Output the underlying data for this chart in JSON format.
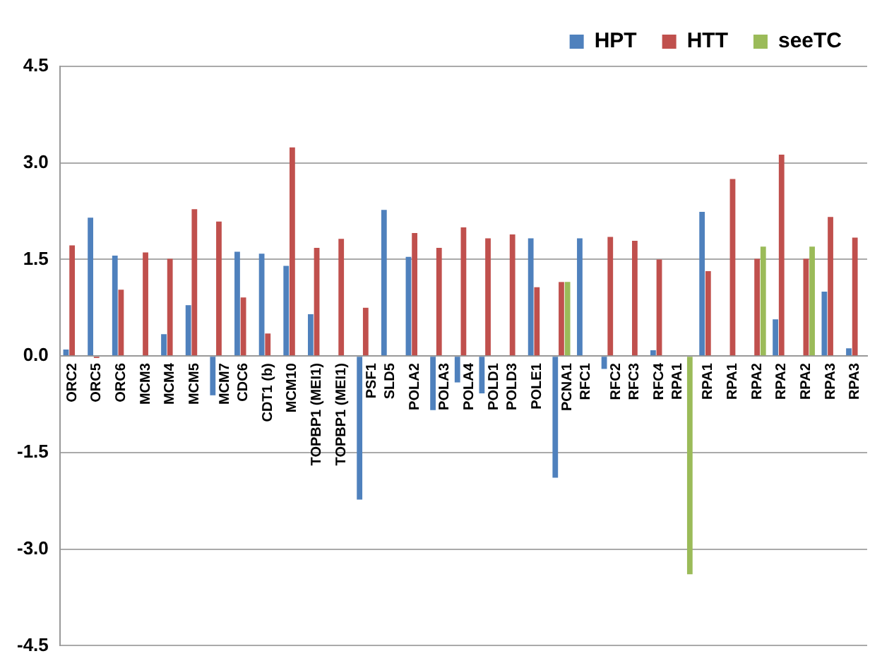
{
  "chart_data": {
    "type": "bar",
    "categories": [
      "ORC2",
      "ORC5",
      "ORC6",
      "MCM3",
      "MCM4",
      "MCM5",
      "MCM7",
      "CDC6",
      "CDT1 (b)",
      "MCM10",
      "TOPBP1 (MEI1)",
      "TOPBP1 (MEI1)",
      "PSF1",
      "SLD5",
      "POLA2",
      "POLA3",
      "POLA4",
      "POLD1",
      "POLD3",
      "POLE1",
      "PCNA1",
      "RFC1",
      "RFC2",
      "RFC3",
      "RFC4",
      "RPA1",
      "RPA1",
      "RPA1",
      "RPA2",
      "RPA2",
      "RPA2",
      "RPA3",
      "RPA3"
    ],
    "series": [
      {
        "name": "HPT",
        "color": "#4f81bd",
        "values": [
          0.1,
          2.15,
          1.56,
          null,
          0.34,
          0.79,
          -0.61,
          1.62,
          1.59,
          1.4,
          0.65,
          null,
          -2.23,
          2.27,
          1.54,
          -0.84,
          -0.41,
          -0.58,
          null,
          1.83,
          -1.89,
          1.83,
          -0.2,
          null,
          0.09,
          null,
          2.24,
          null,
          null,
          0.57,
          null,
          1.0,
          0.12
        ]
      },
      {
        "name": "HTT",
        "color": "#c0504d",
        "values": [
          1.72,
          -0.03,
          1.03,
          1.61,
          1.51,
          2.28,
          2.09,
          0.91,
          0.35,
          3.24,
          1.68,
          1.82,
          0.75,
          null,
          1.91,
          1.68,
          2.0,
          1.83,
          1.89,
          1.07,
          1.15,
          null,
          1.85,
          1.79,
          1.5,
          null,
          1.32,
          2.75,
          1.51,
          3.13,
          1.51,
          2.16,
          1.84
        ]
      },
      {
        "name": "seeTC",
        "color": "#9bbb59",
        "values": [
          null,
          null,
          null,
          null,
          null,
          null,
          null,
          null,
          null,
          null,
          null,
          null,
          null,
          null,
          null,
          null,
          null,
          null,
          null,
          null,
          1.15,
          null,
          null,
          null,
          null,
          -3.39,
          null,
          null,
          1.7,
          null,
          1.7,
          null,
          null
        ]
      }
    ],
    "ylim": [
      -4.5,
      4.5
    ],
    "yticks": [
      4.5,
      {
        "value": 3,
        "label": "3.0"
      },
      1.5,
      {
        "value": 0,
        "label": "0.0"
      },
      -1.5,
      {
        "value": -3,
        "label": "-3.0"
      },
      -4.5
    ],
    "grid": "y",
    "legend": "top right"
  }
}
